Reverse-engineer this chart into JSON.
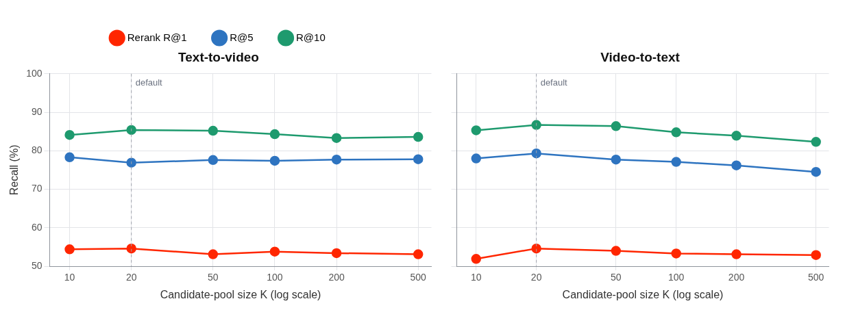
{
  "chart_data": [
    {
      "type": "line",
      "title": "Text-to-video",
      "xlabel": "Candidate-pool size K (log scale)",
      "ylabel": "Recall (%)",
      "log": "x",
      "x": [
        10,
        20,
        50,
        100,
        200,
        500
      ],
      "xlim": [
        8,
        580
      ],
      "xticks": [
        10,
        20,
        50,
        100,
        200,
        500
      ],
      "ylim": [
        50,
        100
      ],
      "yticks": [
        50,
        60,
        70,
        80,
        90,
        100
      ],
      "grid": true,
      "legend": "top",
      "marker": "circle",
      "line_style": "solid",
      "series": [
        {
          "name": "Rerank R@1",
          "color": "#ff2600",
          "values": [
            54.4,
            54.6,
            53.1,
            53.8,
            53.4,
            53.1
          ]
        },
        {
          "name": "R@5",
          "color": "#2e74c0",
          "values": [
            78.3,
            76.9,
            77.6,
            77.4,
            77.7,
            77.8
          ]
        },
        {
          "name": "R@10",
          "color": "#1e9a6e",
          "values": [
            84.1,
            85.4,
            85.2,
            84.3,
            83.3,
            83.6
          ]
        }
      ],
      "ref_lines": [
        {
          "axis": "x",
          "value": 20,
          "label": "default",
          "color": "#a0a4ad",
          "line_style": "dashed"
        }
      ]
    },
    {
      "type": "line",
      "title": "Video-to-text",
      "xlabel": "Candidate-pool size K (log scale)",
      "log": "x",
      "x": [
        10,
        20,
        50,
        100,
        200,
        500
      ],
      "xlim": [
        8,
        580
      ],
      "xticks": [
        10,
        20,
        50,
        100,
        200,
        500
      ],
      "ylim": [
        50,
        100
      ],
      "yticks": [
        50,
        60,
        70,
        80,
        90,
        100
      ],
      "tick_labels": "x",
      "grid": true,
      "marker": "circle",
      "line_style": "solid",
      "series": [
        {
          "color": "#ff2600",
          "values": [
            51.9,
            54.6,
            54.0,
            53.3,
            53.1,
            52.9
          ]
        },
        {
          "color": "#2e74c0",
          "values": [
            78.0,
            79.3,
            77.7,
            77.1,
            76.2,
            74.5
          ]
        },
        {
          "color": "#1e9a6e",
          "values": [
            85.3,
            86.7,
            86.4,
            84.8,
            83.9,
            82.3
          ]
        }
      ],
      "ref_lines": [
        {
          "axis": "x",
          "value": 20,
          "label": "default",
          "color": "#a0a4ad",
          "line_style": "dashed"
        }
      ]
    }
  ]
}
